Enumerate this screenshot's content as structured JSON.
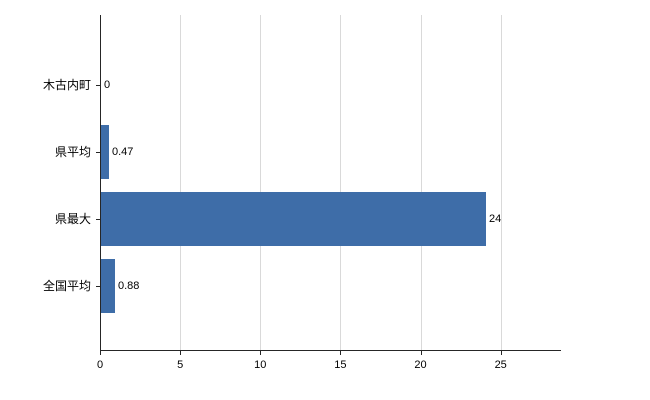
{
  "chart_data": {
    "type": "bar",
    "orientation": "horizontal",
    "title": "",
    "xlabel": "",
    "ylabel": "",
    "categories": [
      "木古内町",
      "県平均",
      "県最大",
      "全国平均"
    ],
    "values": [
      0,
      0.47,
      24,
      0.88
    ],
    "value_labels": [
      "0",
      "0.47",
      "24",
      "0.88"
    ],
    "x_ticks": [
      0,
      5,
      10,
      15,
      20,
      25
    ],
    "x_tick_labels": [
      "0",
      "5",
      "10",
      "15",
      "20",
      "25"
    ],
    "xlim": [
      0,
      28.7
    ],
    "grid": true,
    "legend": "none",
    "colors": {
      "bar": "#3e6da8",
      "grid": "#d9d9d9",
      "axis": "#262626",
      "text": "#000000",
      "background": "#ffffff"
    }
  }
}
